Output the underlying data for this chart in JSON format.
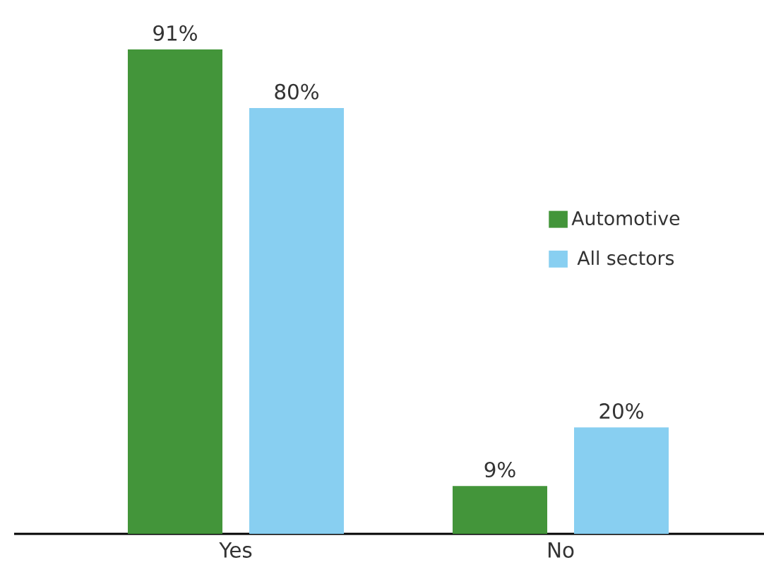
{
  "chart_data": {
    "type": "bar",
    "categories": [
      "Yes",
      "No"
    ],
    "series": [
      {
        "name": "Automotive",
        "color": "#43953a",
        "values": [
          91,
          9
        ],
        "value_labels": [
          "91%",
          "9%"
        ]
      },
      {
        "name": "All sectors",
        "color": "#88cff1",
        "values": [
          80,
          20
        ],
        "value_labels": [
          "80%",
          "20%"
        ]
      }
    ],
    "legend": "right"
  }
}
